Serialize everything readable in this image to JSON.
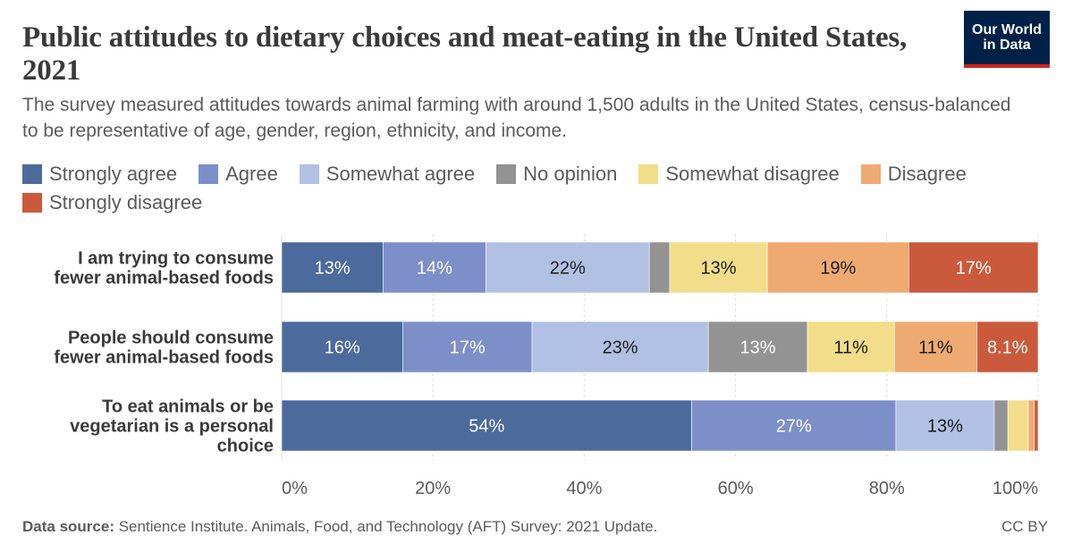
{
  "header": {
    "title": "Public attitudes to dietary choices and meat-eating in the United States, 2021",
    "subtitle": "The survey measured attitudes towards animal farming with around 1,500 adults in the United States, census-balanced to be representative of age, gender, region, ethnicity, and income."
  },
  "logo": {
    "line1": "Our World",
    "line2": "in Data",
    "bg": "#002147",
    "accent": "#ce261e"
  },
  "footer": {
    "source_label": "Data source:",
    "source_text": "Sentience Institute. Animals, Food, and Technology (AFT) Survey: 2021 Update.",
    "license": "CC BY"
  },
  "chart_data": {
    "type": "bar",
    "orientation": "horizontal",
    "stacked": true,
    "title": "Public attitudes to dietary choices and meat-eating in the United States, 2021",
    "categories": [
      [
        "I am trying to consume",
        "fewer animal-based foods"
      ],
      [
        "People should consume",
        "fewer animal-based foods"
      ],
      [
        "To eat animals or be",
        "vegetarian is a personal",
        "choice"
      ]
    ],
    "series": [
      {
        "name": "Strongly agree",
        "color": "#4c6a9c",
        "values": [
          13.4,
          16.0,
          54.2
        ],
        "labels": [
          "13%",
          "16%",
          "54%"
        ],
        "label_color": "#ffffff"
      },
      {
        "name": "Agree",
        "color": "#7c8fc8",
        "values": [
          13.6,
          17.1,
          27.0
        ],
        "labels": [
          "14%",
          "17%",
          "27%"
        ],
        "label_color": "#ffffff"
      },
      {
        "name": "Somewhat agree",
        "color": "#b0c1e3",
        "values": [
          21.6,
          23.3,
          13.0
        ],
        "labels": [
          "22%",
          "23%",
          "13%"
        ],
        "label_color": "#1a1a1a"
      },
      {
        "name": "No opinion",
        "color": "#939393",
        "values": [
          2.7,
          13.1,
          1.8
        ],
        "labels": [
          "",
          "13%",
          ""
        ],
        "label_color": "#ffffff"
      },
      {
        "name": "Somewhat disagree",
        "color": "#f2de8a",
        "values": [
          12.9,
          11.5,
          2.7
        ],
        "labels": [
          "13%",
          "11%",
          ""
        ],
        "label_color": "#1a1a1a"
      },
      {
        "name": "Disagree",
        "color": "#efaa72",
        "values": [
          18.7,
          10.9,
          0.8
        ],
        "labels": [
          "19%",
          "11%",
          ""
        ],
        "label_color": "#1a1a1a"
      },
      {
        "name": "Strongly disagree",
        "color": "#cb5a3c",
        "values": [
          17.1,
          8.1,
          0.5
        ],
        "labels": [
          "17%",
          "8.1%",
          ""
        ],
        "label_color": "#ffffff"
      }
    ],
    "xlim": [
      0,
      100
    ],
    "xticks": [
      "0%",
      "20%",
      "40%",
      "60%",
      "80%",
      "100%"
    ],
    "grid": true,
    "legend_position": "top"
  }
}
